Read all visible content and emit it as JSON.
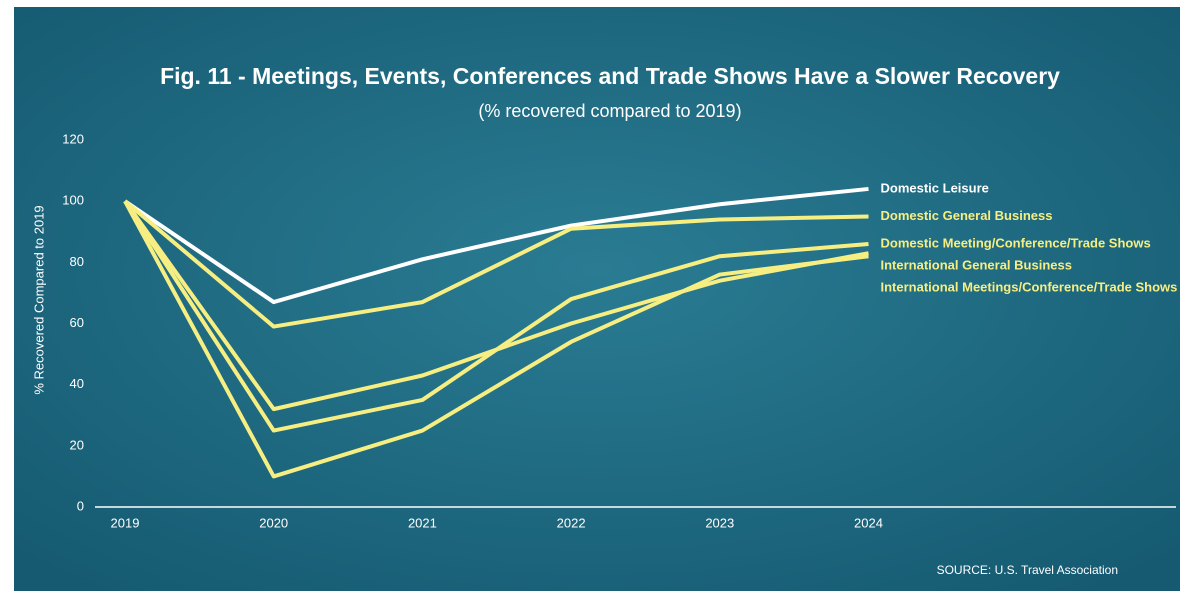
{
  "chart_data": {
    "type": "line",
    "title": "Fig. 11 - Meetings, Events, Conferences and Trade Shows Have a Slower Recovery",
    "subtitle": "(% recovered compared to 2019)",
    "y_label": "% Recovered Compared to 2019",
    "source": "SOURCE: U.S. Travel Association",
    "categories": [
      "2019",
      "2020",
      "2021",
      "2022",
      "2023",
      "2024"
    ],
    "series": [
      {
        "name": "Domestic Leisure",
        "color": "#ffffff",
        "values": [
          100,
          67,
          81,
          92,
          99,
          104
        ]
      },
      {
        "name": "Domestic General Business",
        "color": "#f7ee82",
        "values": [
          100,
          59,
          67,
          91,
          94,
          95
        ]
      },
      {
        "name": "Domestic Meeting/Conference/Trade Shows",
        "color": "#f7ee82",
        "values": [
          100,
          25,
          35,
          68,
          82,
          86
        ]
      },
      {
        "name": "International General Business",
        "color": "#f7ee82",
        "values": [
          100,
          32,
          43,
          60,
          74,
          83
        ]
      },
      {
        "name": "International Meetings/Conference/Trade Shows",
        "color": "#f7ee82",
        "values": [
          100,
          10,
          25,
          54,
          76,
          82
        ]
      }
    ],
    "ylim": [
      0,
      120
    ],
    "yticks": [
      0,
      20,
      40,
      60,
      80,
      100,
      120
    ]
  }
}
